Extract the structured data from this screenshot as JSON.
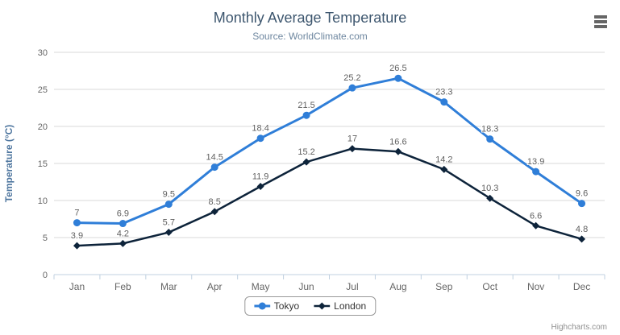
{
  "chart_data": {
    "type": "line",
    "title": "Monthly Average Temperature",
    "subtitle": "Source: WorldClimate.com",
    "categories": [
      "Jan",
      "Feb",
      "Mar",
      "Apr",
      "May",
      "Jun",
      "Jul",
      "Aug",
      "Sep",
      "Oct",
      "Nov",
      "Dec"
    ],
    "series": [
      {
        "name": "Tokyo",
        "color": "#2f7ed8",
        "marker": "circle",
        "values": [
          7,
          6.9,
          9.5,
          14.5,
          18.4,
          21.5,
          25.2,
          26.5,
          23.3,
          18.3,
          13.9,
          9.6
        ]
      },
      {
        "name": "London",
        "color": "#0d233a",
        "marker": "diamond",
        "values": [
          3.9,
          4.2,
          5.7,
          8.5,
          11.9,
          15.2,
          17,
          16.6,
          14.2,
          10.3,
          6.6,
          4.8
        ]
      }
    ],
    "xlabel": "",
    "ylabel": "Temperature (°C)",
    "ylim": [
      0,
      30
    ],
    "yticks": [
      0,
      5,
      10,
      15,
      20,
      25,
      30
    ],
    "grid": true,
    "data_labels": true,
    "legend_position": "bottom-center"
  },
  "colors": {
    "grid": "#d8d8d8",
    "axis_line": "#c0d0e0",
    "axis_label": "#666666",
    "data_label": "#606060",
    "title": "#3e576f",
    "subtitle": "#6d869f",
    "yaxis_title": "#4d759e",
    "legend_text": "#333333",
    "credits": "#909090"
  },
  "export_menu": {
    "icon": "hamburger-menu-icon"
  },
  "credits": {
    "label": "Highcharts.com"
  }
}
